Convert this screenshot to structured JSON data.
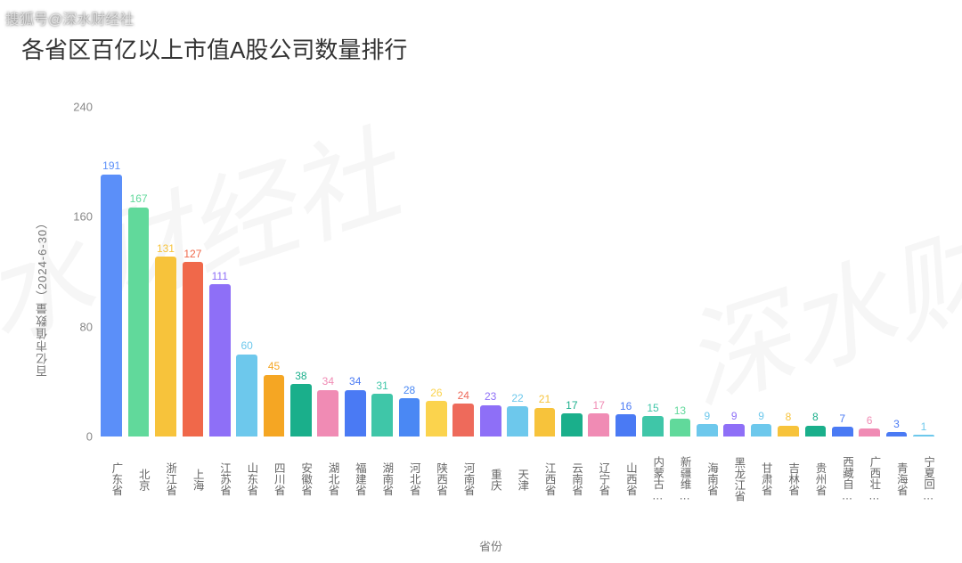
{
  "watermark_topleft": "搜狐号@深水财经社",
  "watermark_diagonal_1": "水财经社",
  "watermark_diagonal_2": "深水财",
  "chart": {
    "type": "bar",
    "title": "各省区百亿以上市值A股公司数量排行",
    "yaxis_label": "百亿市值数量（2024-6-30）",
    "xaxis_label": "省份",
    "ylim": [
      0,
      240
    ],
    "ytick_step": 80,
    "background_color": "#ffffff",
    "axis_text_color": "#888888",
    "title_fontsize": 26,
    "label_fontsize": 13,
    "bar_width": 0.78,
    "bars": [
      {
        "label": "广东省",
        "value": 191,
        "color": "#5b8ff9"
      },
      {
        "label": "北京",
        "value": 167,
        "color": "#61d99b"
      },
      {
        "label": "浙江省",
        "value": 131,
        "color": "#f7c33b"
      },
      {
        "label": "上海",
        "value": 127,
        "color": "#f0684a"
      },
      {
        "label": "江苏省",
        "value": 111,
        "color": "#8e6ff7"
      },
      {
        "label": "山东省",
        "value": 60,
        "color": "#6dc8ec"
      },
      {
        "label": "四川省",
        "value": 45,
        "color": "#f5a623"
      },
      {
        "label": "安徽省",
        "value": 38,
        "color": "#1aaf8b"
      },
      {
        "label": "湖北省",
        "value": 34,
        "color": "#f08bb4"
      },
      {
        "label": "福建省",
        "value": 34,
        "color": "#4a7af4"
      },
      {
        "label": "湖南省",
        "value": 31,
        "color": "#3fc6a8"
      },
      {
        "label": "河北省",
        "value": 28,
        "color": "#4a88f4"
      },
      {
        "label": "陕西省",
        "value": 26,
        "color": "#fbd34d"
      },
      {
        "label": "河南省",
        "value": 24,
        "color": "#ee6a5b"
      },
      {
        "label": "重庆",
        "value": 23,
        "color": "#8e6ff7"
      },
      {
        "label": "天津",
        "value": 22,
        "color": "#6dc8ec"
      },
      {
        "label": "江西省",
        "value": 21,
        "color": "#f7c33b"
      },
      {
        "label": "云南省",
        "value": 17,
        "color": "#1aaf8b"
      },
      {
        "label": "辽宁省",
        "value": 17,
        "color": "#f08bb4"
      },
      {
        "label": "山西省",
        "value": 16,
        "color": "#4a7af4"
      },
      {
        "label": "内蒙古…",
        "value": 15,
        "color": "#3fc6a8"
      },
      {
        "label": "新疆维…",
        "value": 13,
        "color": "#61d99b"
      },
      {
        "label": "海南省",
        "value": 9,
        "color": "#6dc8ec"
      },
      {
        "label": "黑龙江省",
        "value": 9,
        "color": "#8e6ff7"
      },
      {
        "label": "甘肃省",
        "value": 9,
        "color": "#6dc8ec"
      },
      {
        "label": "吉林省",
        "value": 8,
        "color": "#f7c33b"
      },
      {
        "label": "贵州省",
        "value": 8,
        "color": "#1aaf8b"
      },
      {
        "label": "西藏自…",
        "value": 7,
        "color": "#4a7af4"
      },
      {
        "label": "广西壮…",
        "value": 6,
        "color": "#f08bb4"
      },
      {
        "label": "青海省",
        "value": 3,
        "color": "#4a7af4"
      },
      {
        "label": "宁夏回…",
        "value": 1,
        "color": "#6dc8ec"
      }
    ]
  }
}
